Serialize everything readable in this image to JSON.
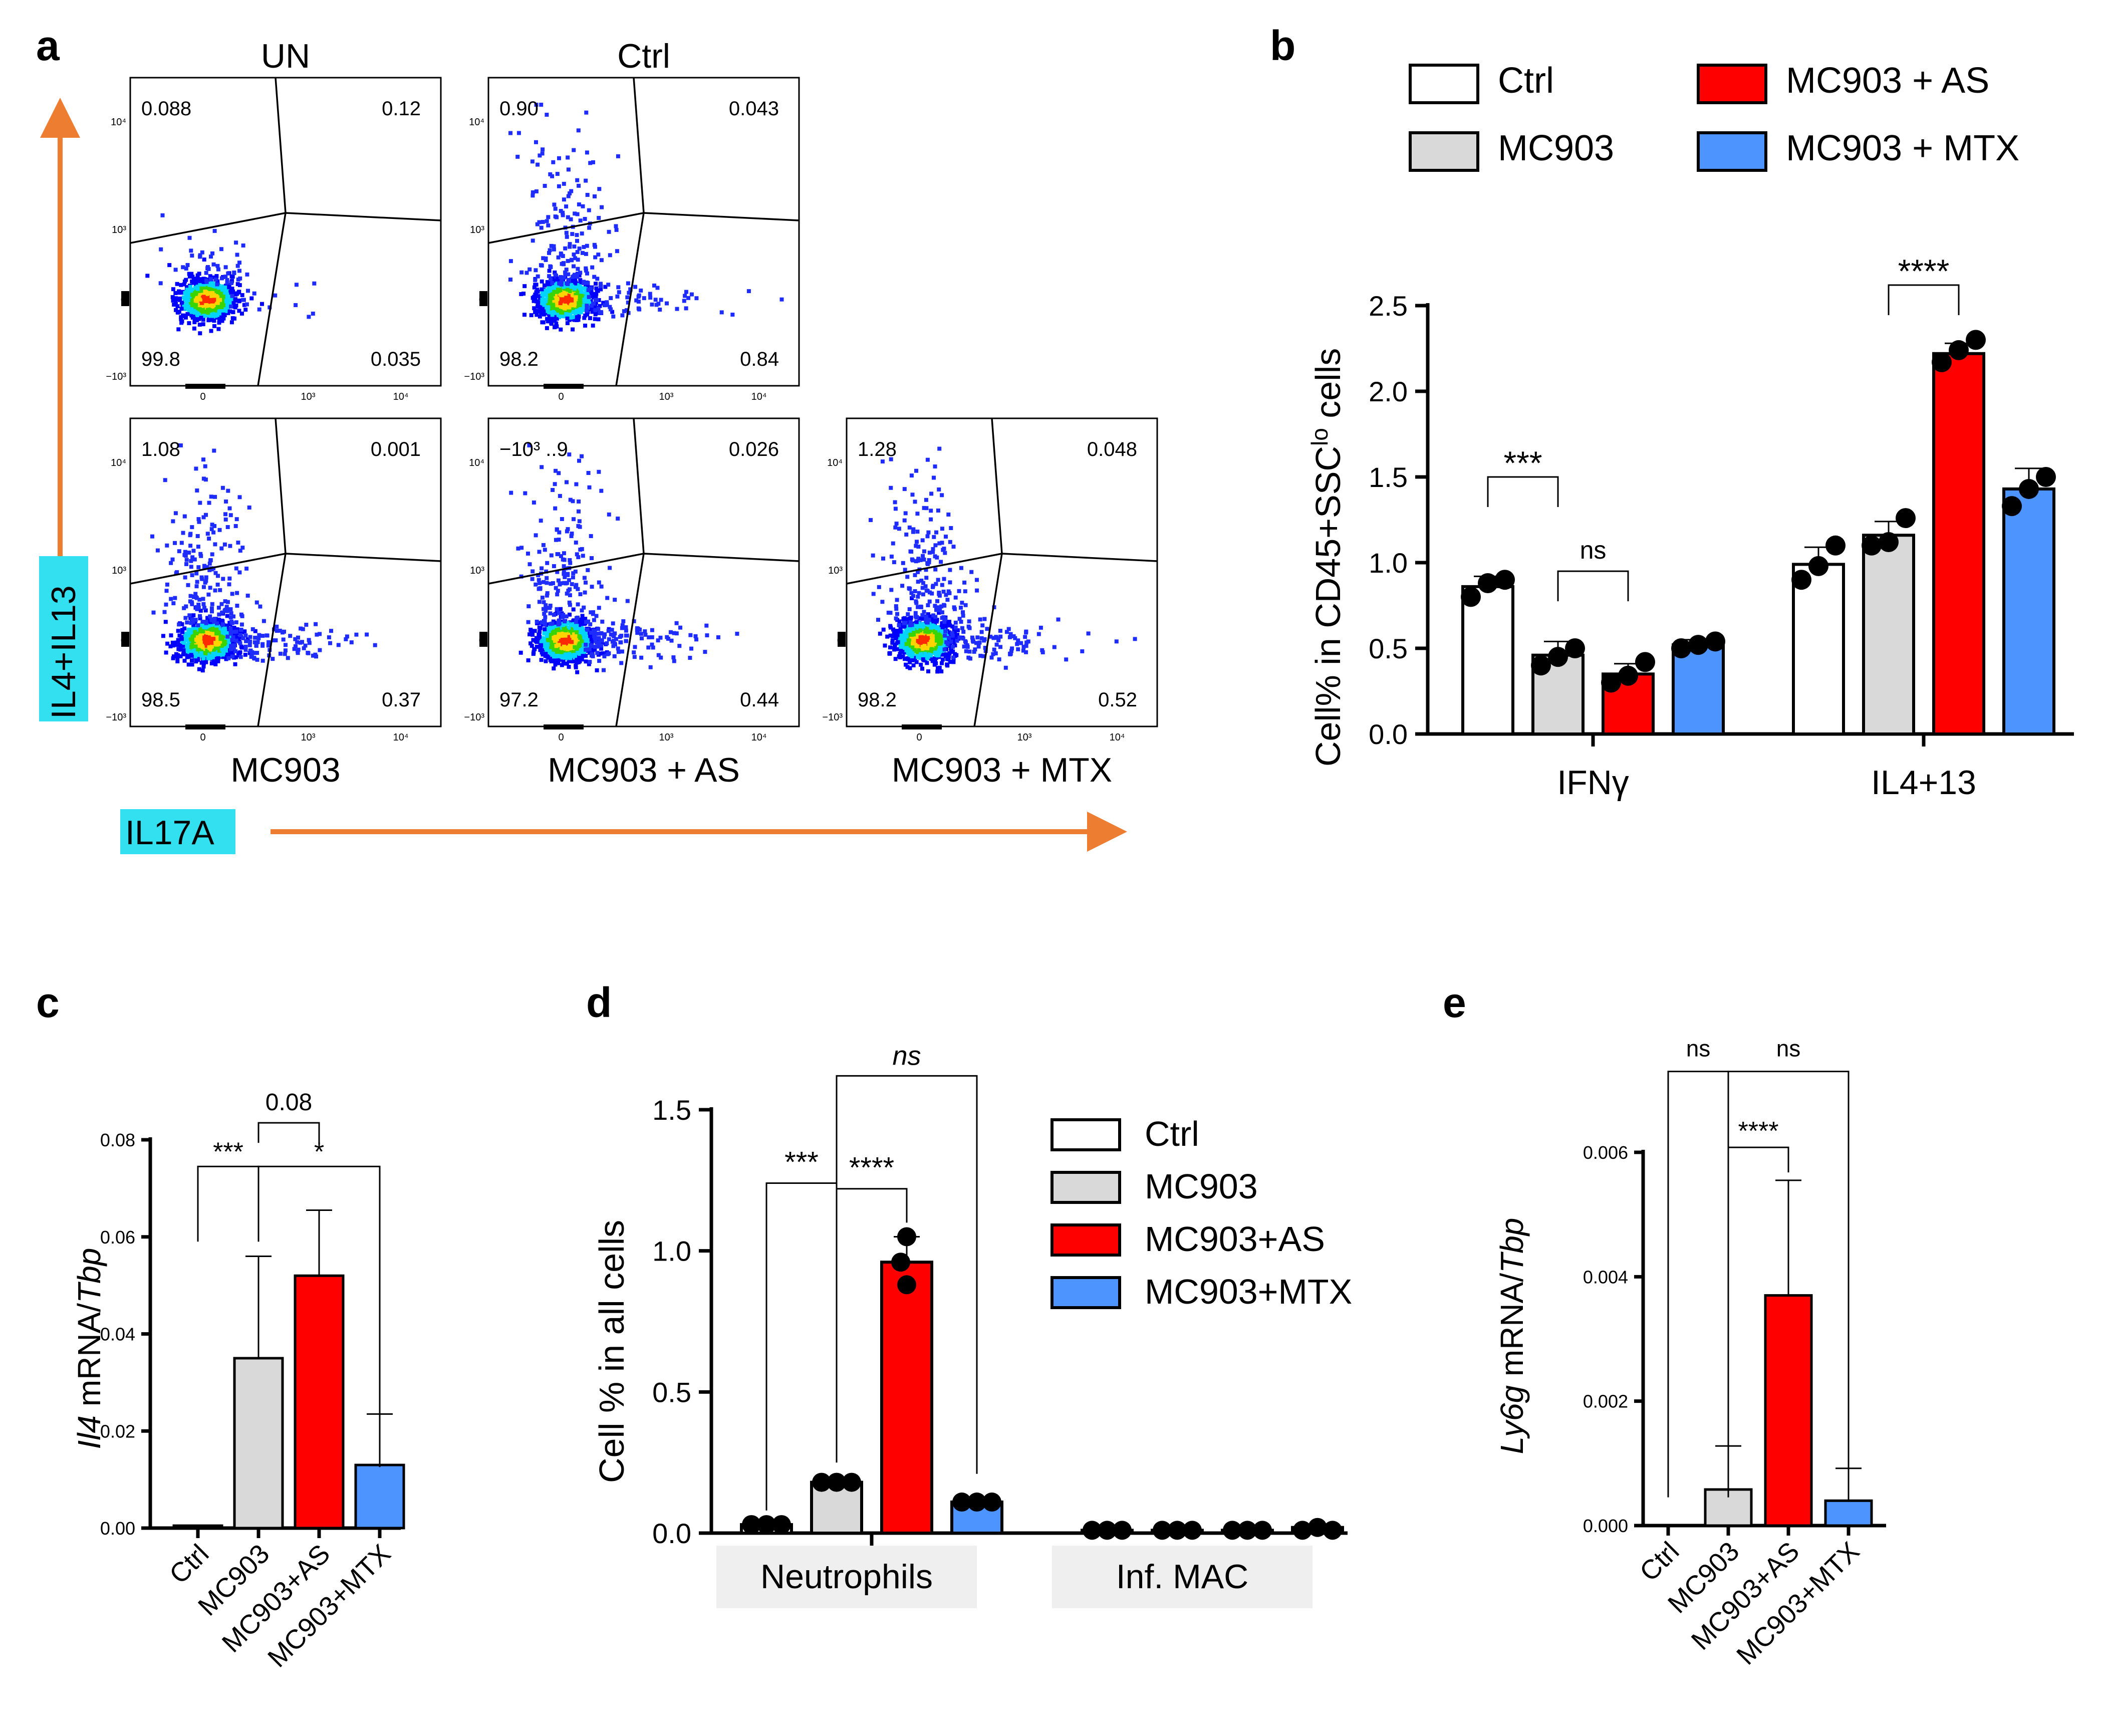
{
  "panel_labels": {
    "a": "a",
    "b": "b",
    "c": "c",
    "d": "d",
    "e": "e"
  },
  "colors": {
    "ctrl": "#ffffff",
    "mc903": "#d9d9d9",
    "as": "#ff0000",
    "mtx": "#4d94ff",
    "arrow": "#ed7d31",
    "axis_label_bg": "#33e0f0"
  },
  "panel_a": {
    "y_channel": "IL4+IL13",
    "x_channel": "IL17A",
    "tick_labels": {
      "neg": "−10³",
      "zero": "0",
      "e3": "10³",
      "e4": "10⁴"
    },
    "plots": [
      {
        "title": "UN",
        "subtitle": "",
        "q_ul": "0.088",
        "q_ur": "0.12",
        "q_ll": "99.8",
        "q_lr": "0.035",
        "spread": "low"
      },
      {
        "title": "Ctrl",
        "subtitle": "",
        "q_ul": "0.90",
        "q_ur": "0.043",
        "q_ll": "98.2",
        "q_lr": "0.84",
        "spread": "mid"
      },
      {
        "title": "",
        "subtitle": "MC903",
        "q_ul": "1.08",
        "q_ur": "0.001",
        "q_ll": "98.5",
        "q_lr": "0.37",
        "spread": "high"
      },
      {
        "title": "",
        "subtitle": "MC903 + AS",
        "q_ul": "−10³ ..9",
        "q_ur": "0.026",
        "q_ll": "97.2",
        "q_lr": "0.44",
        "spread": "high"
      },
      {
        "title": "",
        "subtitle": "MC903 + MTX",
        "q_ul": "1.28",
        "q_ur": "0.048",
        "q_ll": "98.2",
        "q_lr": "0.52",
        "spread": "high"
      }
    ]
  },
  "chart_data": [
    {
      "id": "b",
      "type": "bar",
      "ylabel": "Cell% in CD45+SSC",
      "ylabel_sup": "lo",
      "ylabel_tail": " cells",
      "ylim": [
        0,
        2.5
      ],
      "yticks": [
        "0.0",
        "0.5",
        "1.0",
        "1.5",
        "2.0",
        "2.5"
      ],
      "categories": [
        "IFNγ",
        "IL4+13"
      ],
      "legend": [
        "Ctrl",
        "MC903",
        "MC903 + AS",
        "MC903 + MTX"
      ],
      "series": [
        {
          "name": "Ctrl",
          "values": [
            0.86,
            0.99
          ],
          "errors": [
            0.06,
            0.1
          ],
          "points": [
            [
              0.8,
              0.88,
              0.9
            ],
            [
              0.9,
              0.98,
              1.1
            ]
          ]
        },
        {
          "name": "MC903",
          "values": [
            0.46,
            1.16
          ],
          "errors": [
            0.08,
            0.08
          ],
          "points": [
            [
              0.4,
              0.45,
              0.5
            ],
            [
              1.1,
              1.12,
              1.26
            ]
          ]
        },
        {
          "name": "MC903 + AS",
          "values": [
            0.35,
            2.22
          ],
          "errors": [
            0.06,
            0.06
          ],
          "points": [
            [
              0.3,
              0.34,
              0.42
            ],
            [
              2.17,
              2.24,
              2.3
            ]
          ]
        },
        {
          "name": "MC903 + MTX",
          "values": [
            0.52,
            1.43
          ],
          "errors": [
            0.03,
            0.12
          ],
          "points": [
            [
              0.5,
              0.52,
              0.54
            ],
            [
              1.33,
              1.43,
              1.5
            ]
          ]
        }
      ],
      "brackets": [
        {
          "label": "***",
          "group": 0,
          "from": 0,
          "to": 1,
          "y": 1.5
        },
        {
          "label": "ns",
          "group": 0,
          "from": 1,
          "to": 2,
          "y": 0.95
        },
        {
          "label": "****",
          "group": 1,
          "from": 1,
          "to": 2,
          "y": 2.62
        }
      ]
    },
    {
      "id": "c",
      "type": "bar",
      "ylabel_italic": "Il4",
      "ylabel": " mRNA/",
      "ylabel_italic2": "Tbp",
      "ylim": [
        0,
        0.08
      ],
      "yticks": [
        "0.00",
        "0.02",
        "0.04",
        "0.06",
        "0.08"
      ],
      "categories": [
        "Ctrl",
        "MC903",
        "MC903+AS",
        "MC903+MTX"
      ],
      "values": [
        0.0005,
        0.035,
        0.052,
        0.013
      ],
      "errors": [
        0.0,
        0.021,
        0.0135,
        0.0105
      ],
      "brackets": [
        {
          "label": "***",
          "from": 0,
          "to": 1,
          "y": 0.0745
        },
        {
          "label": "0.08",
          "from": 1,
          "to": 2,
          "y": 0.0835
        },
        {
          "label": "*",
          "from": 1,
          "to": 3,
          "y": 0.0745
        }
      ]
    },
    {
      "id": "d",
      "type": "bar",
      "ylabel": "Cell % in all cells",
      "ylim": [
        0,
        1.5
      ],
      "yticks": [
        "0.0",
        "0.5",
        "1.0",
        "1.5"
      ],
      "categories": [
        "Neutrophils",
        "Inf. MAC"
      ],
      "legend": [
        "Ctrl",
        "MC903",
        "MC903+AS",
        "MC903+MTX"
      ],
      "series": [
        {
          "name": "Ctrl",
          "values": [
            0.03,
            0.01
          ],
          "errors": [
            0.0,
            0.0
          ]
        },
        {
          "name": "MC903",
          "values": [
            0.18,
            0.01
          ],
          "errors": [
            0.01,
            0.0
          ]
        },
        {
          "name": "MC903+AS",
          "values": [
            0.96,
            0.01
          ],
          "errors": [
            0.09,
            0.0
          ]
        },
        {
          "name": "MC903+MTX",
          "values": [
            0.11,
            0.02
          ],
          "errors": [
            0.01,
            0.0
          ]
        }
      ],
      "points": [
        [
          [
            0.03,
            0.03,
            0.03
          ],
          [
            0.01,
            0.01,
            0.01
          ]
        ],
        [
          [
            0.18,
            0.18,
            0.18
          ],
          [
            0.01,
            0.01,
            0.01
          ]
        ],
        [
          [
            1.05,
            0.96,
            0.88
          ],
          [
            0.01,
            0.01,
            0.01
          ]
        ],
        [
          [
            0.11,
            0.11,
            0.11
          ],
          [
            0.01,
            0.02,
            0.01
          ]
        ]
      ],
      "brackets": [
        {
          "label": "***",
          "from": 0,
          "to": 1,
          "y": 1.24
        },
        {
          "label": "****",
          "from": 1,
          "to": 2,
          "y": 1.22
        },
        {
          "label": "ns",
          "from": 1,
          "to": 3,
          "y": 1.62,
          "italic": true
        }
      ]
    },
    {
      "id": "e",
      "type": "bar",
      "ylabel_italic": "Ly6g",
      "ylabel": " mRNA/",
      "ylabel_italic2": "Tbp",
      "ylim": [
        0,
        0.006
      ],
      "yticks": [
        "0.000",
        "0.002",
        "0.004",
        "0.006"
      ],
      "categories": [
        "Ctrl",
        "MC903",
        "MC903+AS",
        "MC903+MTX"
      ],
      "values": [
        0.0,
        0.00058,
        0.0037,
        0.0004
      ],
      "errors": [
        0.0,
        0.0007,
        0.00185,
        0.00052
      ],
      "brackets": [
        {
          "label": "****",
          "from": 1,
          "to": 2,
          "y": 0.00608
        },
        {
          "label": "ns",
          "from": 0,
          "to": 1,
          "y": 0.0073
        },
        {
          "label": "ns",
          "from": 1,
          "to": 3,
          "y": 0.0073
        }
      ]
    }
  ]
}
